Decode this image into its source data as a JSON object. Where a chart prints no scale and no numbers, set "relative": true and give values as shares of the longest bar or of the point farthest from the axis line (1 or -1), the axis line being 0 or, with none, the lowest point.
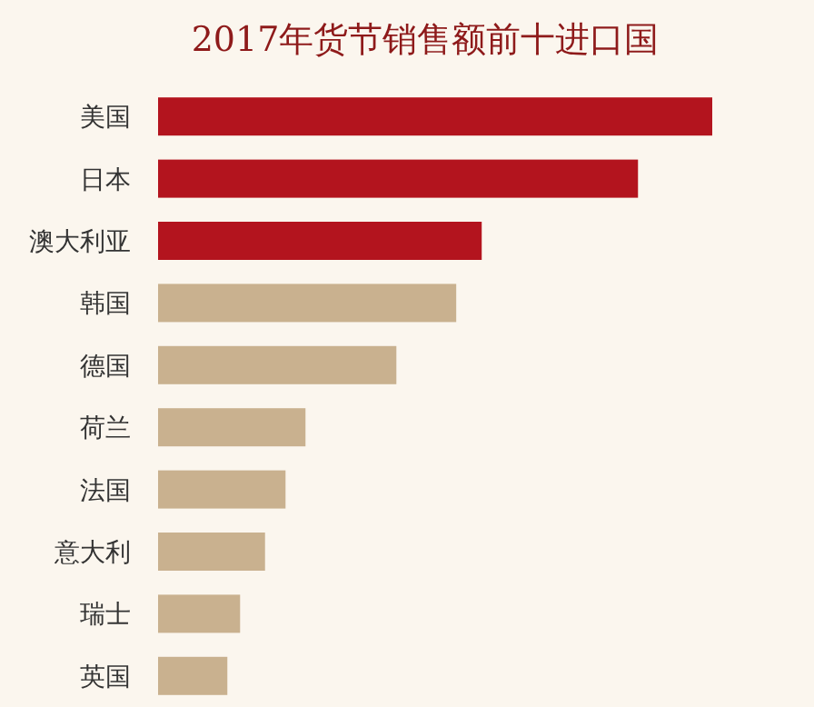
{
  "chart_data": {
    "type": "bar",
    "orientation": "horizontal",
    "relative": true,
    "title": "2017年货节销售额前十进口国",
    "categories": [
      "美国",
      "日本",
      "澳大利亚",
      "韩国",
      "德国",
      "荷兰",
      "法国",
      "意大利",
      "瑞士",
      "英国"
    ],
    "values": [
      1,
      0.866,
      0.584,
      0.538,
      0.43,
      0.266,
      0.23,
      0.193,
      0.148,
      0.125
    ],
    "colors": [
      "#b3141e",
      "#b3141e",
      "#b3141e",
      "#c9b18f",
      "#c9b18f",
      "#c9b18f",
      "#c9b18f",
      "#c9b18f",
      "#c9b18f",
      "#c9b18f"
    ]
  }
}
